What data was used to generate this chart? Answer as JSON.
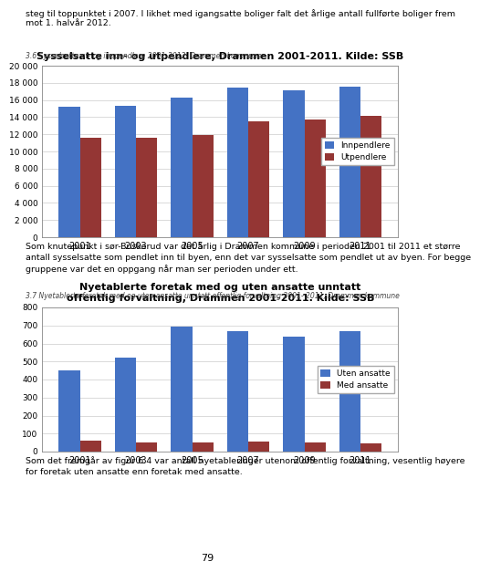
{
  "page_title_text": "steg til toppunktet i 2007. I likhet med igangsatte boliger falt det årlige antall fullførte boliger frem\nmot 1. halvår 2012.",
  "chart1": {
    "caption": "3.6 Sysselsatte ut- og innpendlere 2001-2012, Drammen kommune",
    "title": "Sysselsatte inn- og utpendlere, Drammen 2001-2011. Kilde: SSB",
    "years": [
      2001,
      2003,
      2005,
      2007,
      2009,
      2011
    ],
    "innpendlere": [
      15200,
      15300,
      16300,
      17500,
      17100,
      17600
    ],
    "utpendlere": [
      11600,
      11600,
      11900,
      13500,
      13700,
      14200
    ],
    "ylim": [
      0,
      20000
    ],
    "yticks": [
      0,
      2000,
      4000,
      6000,
      8000,
      10000,
      12000,
      14000,
      16000,
      18000,
      20000
    ],
    "color_inn": "#4472C4",
    "color_ut": "#943634",
    "legend_inn": "Innpendlere",
    "legend_ut": "Utpendlere"
  },
  "chart1_body_text": "Som knutepunkt i sør-Buskerud var det årlig i Drammen kommune i perioden 2001 til 2011 et større\nantall sysselsatte som pendlet inn til byen, enn det var sysselsatte som pendlet ut av byen. For begge\ngruppene var det en oppgang når man ser perioden under ett.",
  "chart2": {
    "caption": "3.7 Nyetablerte foretak med og uten ansatte unntatt offentlig forvaltning 2001- 2011, Drammen kommune",
    "title": "Nyetablerte foretak med og uten ansatte unntatt\noffentlig forvaltning, Drammen 2001-2011. Kilde: SSB",
    "years": [
      2001,
      2003,
      2005,
      2007,
      2009,
      2011
    ],
    "uten_ansatte": [
      450,
      520,
      695,
      670,
      640,
      670
    ],
    "med_ansatte": [
      60,
      50,
      50,
      55,
      50,
      45
    ],
    "ylim": [
      0,
      800
    ],
    "yticks": [
      0,
      100,
      200,
      300,
      400,
      500,
      600,
      700,
      800
    ],
    "color_uten": "#4472C4",
    "color_med": "#943634",
    "legend_uten": "Uten ansatte",
    "legend_med": "Med ansatte"
  },
  "chart2_body_text": "Som det fremgår av figur 6.4 var antall nyetableringer utenom offentlig forvaltning, vesentlig høyere\nfor foretak uten ansatte enn foretak med ansatte.",
  "page_number": "79",
  "background": "#ffffff"
}
